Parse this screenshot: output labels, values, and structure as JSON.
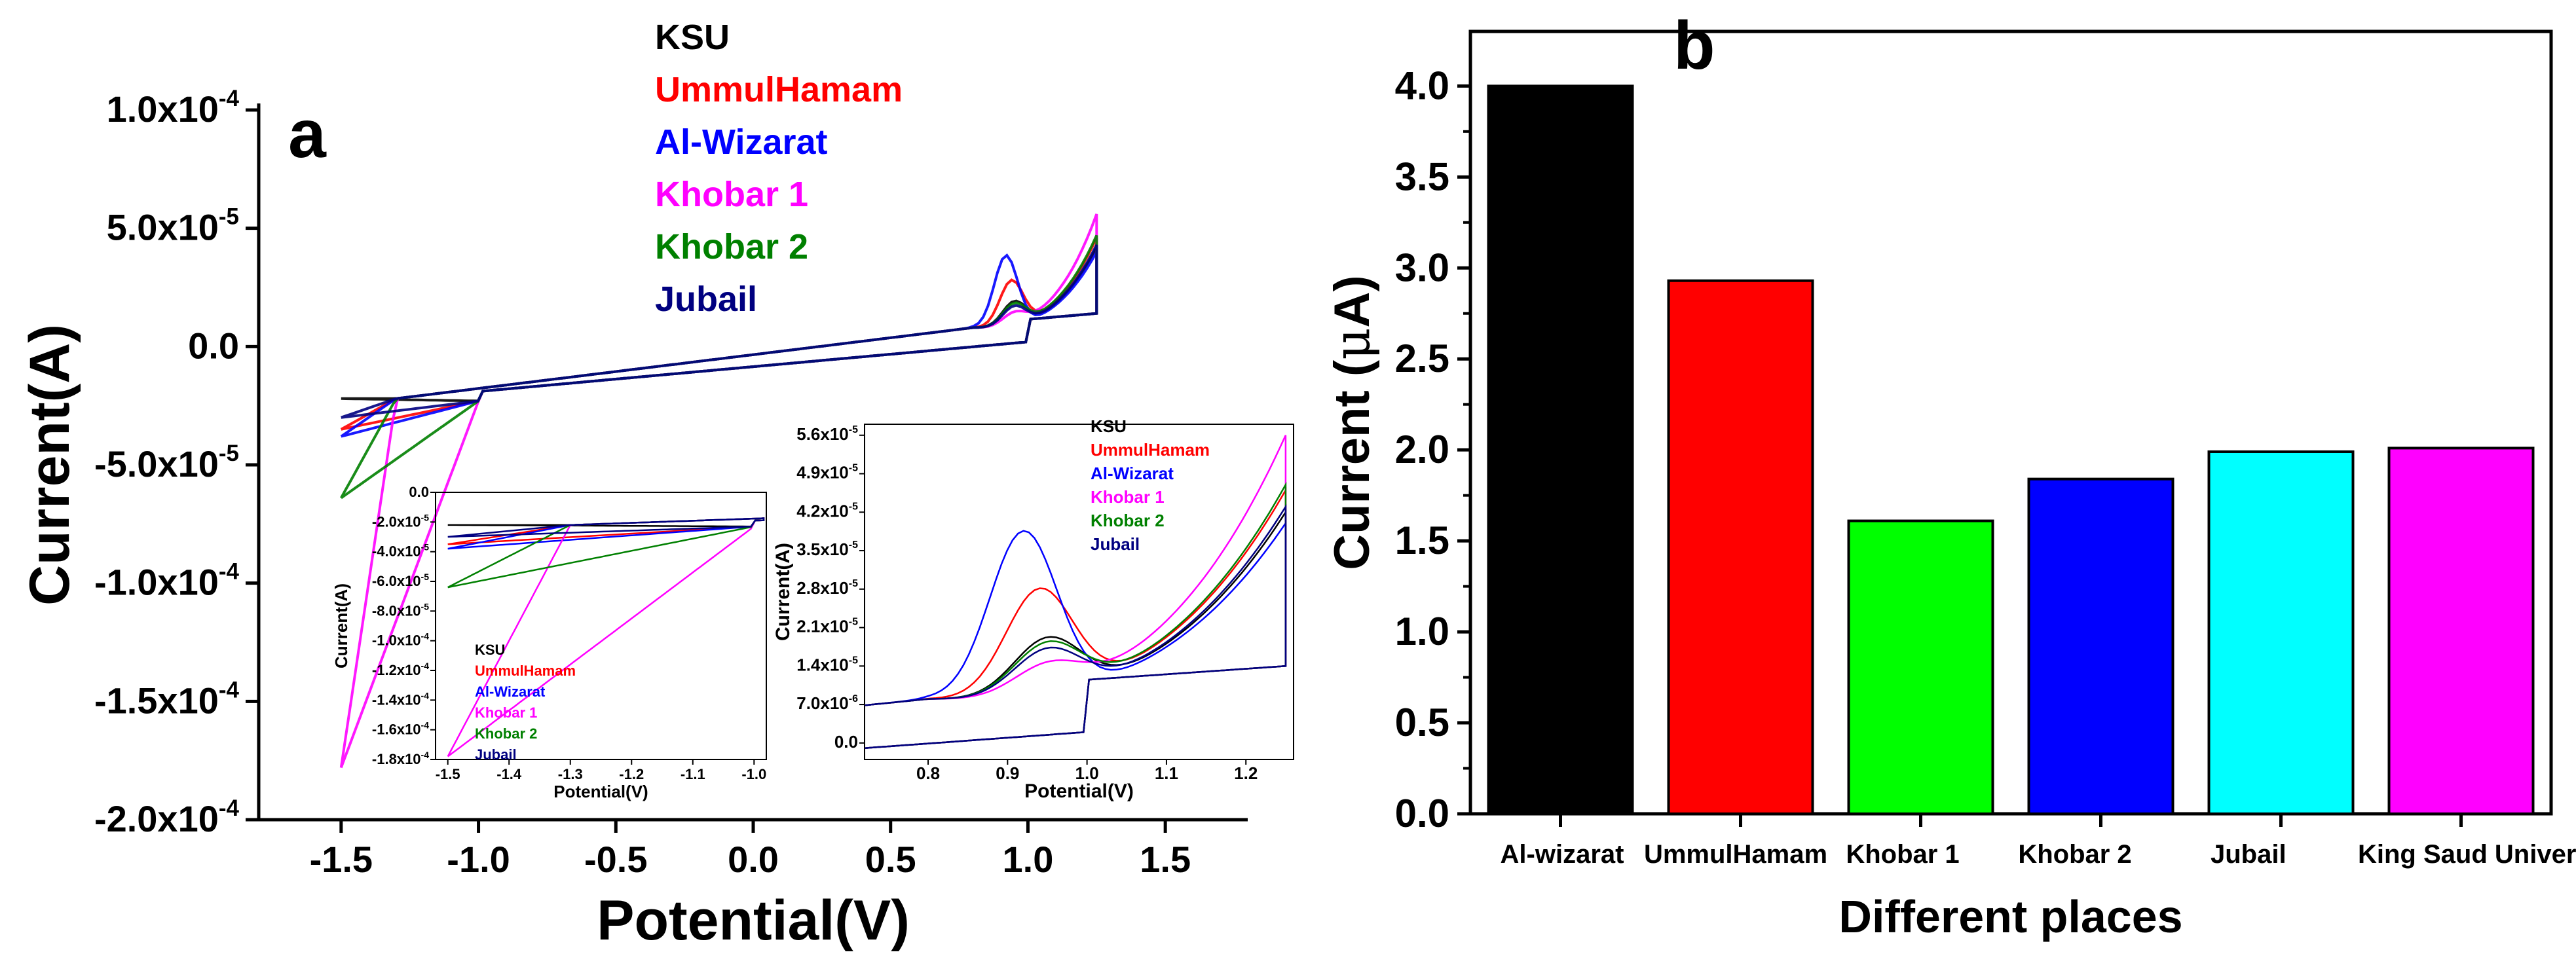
{
  "figure": {
    "panel_a_letter": "a",
    "panel_b_letter": "b"
  },
  "chart_data": [
    {
      "id": "panel-a-main",
      "type": "line",
      "title": "",
      "xlabel": "Potential(V)",
      "ylabel": "Current(A)",
      "xlim": [
        -1.8,
        1.8
      ],
      "ylim": [
        -0.0002,
        0.0001
      ],
      "x_ticks": [
        {
          "v": -1.5,
          "label": "-1.5"
        },
        {
          "v": -1.0,
          "label": "-1.0"
        },
        {
          "v": -0.5,
          "label": "-0.5"
        },
        {
          "v": 0.0,
          "label": "0.0"
        },
        {
          "v": 0.5,
          "label": "0.5"
        },
        {
          "v": 1.0,
          "label": "1.0"
        },
        {
          "v": 1.5,
          "label": "1.5"
        }
      ],
      "y_ticks": [
        {
          "v": 0.0001,
          "m": "1.0x10",
          "e": "-4"
        },
        {
          "v": 5e-05,
          "m": "5.0x10",
          "e": "-5"
        },
        {
          "v": 0,
          "m": "0.0",
          "e": ""
        },
        {
          "v": -5e-05,
          "m": "-5.0x10",
          "e": "-5"
        },
        {
          "v": -0.0001,
          "m": "-1.0x10",
          "e": "-4"
        },
        {
          "v": -0.00015,
          "m": "-1.5x10",
          "e": "-4"
        },
        {
          "v": -0.0002,
          "m": "-2.0x10",
          "e": "-4"
        }
      ],
      "legend": [
        "KSU",
        "UmmulHamam",
        "Al-Wizarat",
        "Khobar 1",
        "Khobar 2",
        "Jubail"
      ],
      "series": [
        {
          "name": "KSU",
          "color": "#000000",
          "peak_potential": 0.95,
          "peak_current": 2e-05,
          "start_current": -2.2e-05,
          "end_current": 4.2e-05
        },
        {
          "name": "UmmulHamam",
          "color": "#ff0000",
          "peak_potential": 0.94,
          "peak_current": 2.9e-05,
          "start_current": -3.5e-05,
          "end_current": 4.6e-05
        },
        {
          "name": "Al-Wizarat",
          "color": "#0000ff",
          "peak_potential": 0.92,
          "peak_current": 4e-05,
          "start_current": -3.8e-05,
          "end_current": 4e-05
        },
        {
          "name": "Khobar 1",
          "color": "#ff00ff",
          "peak_potential": 0.95,
          "peak_current": 1.5e-05,
          "start_current": -0.000178,
          "end_current": 5.6e-05
        },
        {
          "name": "Khobar 2",
          "color": "#008000",
          "peak_potential": 0.95,
          "peak_current": 1.9e-05,
          "start_current": -6.4e-05,
          "end_current": 4.7e-05
        },
        {
          "name": "Jubail",
          "color": "#000080",
          "peak_potential": 0.95,
          "peak_current": 1.8e-05,
          "start_current": -3e-05,
          "end_current": 4.3e-05
        }
      ]
    },
    {
      "id": "panel-a-inset-left",
      "type": "line",
      "xlabel": "Potential(V)",
      "ylabel": "Current(A)",
      "xlim": [
        -1.52,
        -0.98
      ],
      "ylim": [
        -0.00018,
        0
      ],
      "x_ticks": [
        {
          "v": -1.5,
          "label": "-1.5"
        },
        {
          "v": -1.4,
          "label": "-1.4"
        },
        {
          "v": -1.3,
          "label": "-1.3"
        },
        {
          "v": -1.2,
          "label": "-1.2"
        },
        {
          "v": -1.1,
          "label": "-1.1"
        },
        {
          "v": -1.0,
          "label": "-1.0"
        }
      ],
      "y_ticks": [
        {
          "v": 0,
          "m": "0.0",
          "e": ""
        },
        {
          "v": -2e-05,
          "m": "-2.0x10",
          "e": "-5"
        },
        {
          "v": -4e-05,
          "m": "-4.0x10",
          "e": "-5"
        },
        {
          "v": -6e-05,
          "m": "-6.0x10",
          "e": "-5"
        },
        {
          "v": -8e-05,
          "m": "-8.0x10",
          "e": "-5"
        },
        {
          "v": -0.0001,
          "m": "-1.0x10",
          "e": "-4"
        },
        {
          "v": -0.00012,
          "m": "-1.2x10",
          "e": "-4"
        },
        {
          "v": -0.00014,
          "m": "-1.4x10",
          "e": "-4"
        },
        {
          "v": -0.00016,
          "m": "-1.6x10",
          "e": "-4"
        },
        {
          "v": -0.00018,
          "m": "-1.8x10",
          "e": "-4"
        }
      ],
      "legend": [
        "KSU",
        "UmmulHamam",
        "Al-Wizarat",
        "Khobar 1",
        "Khobar 2",
        "Jubail"
      ]
    },
    {
      "id": "panel-a-inset-right",
      "type": "line",
      "xlabel": "Potential(V)",
      "ylabel": "Current(A)",
      "xlim": [
        0.72,
        1.26
      ],
      "ylim": [
        -3e-06,
        5.8e-05
      ],
      "x_ticks": [
        {
          "v": 0.8,
          "label": "0.8"
        },
        {
          "v": 0.9,
          "label": "0.9"
        },
        {
          "v": 1.0,
          "label": "1.0"
        },
        {
          "v": 1.1,
          "label": "1.1"
        },
        {
          "v": 1.2,
          "label": "1.2"
        }
      ],
      "y_ticks": [
        {
          "v": 0,
          "m": "0.0",
          "e": ""
        },
        {
          "v": 7e-06,
          "m": "7.0x10",
          "e": "-6"
        },
        {
          "v": 1.4e-05,
          "m": "1.4x10",
          "e": "-5"
        },
        {
          "v": 2.1e-05,
          "m": "2.1x10",
          "e": "-5"
        },
        {
          "v": 2.8e-05,
          "m": "2.8x10",
          "e": "-5"
        },
        {
          "v": 3.5e-05,
          "m": "3.5x10",
          "e": "-5"
        },
        {
          "v": 4.2e-05,
          "m": "4.2x10",
          "e": "-5"
        },
        {
          "v": 4.9e-05,
          "m": "4.9x10",
          "e": "-5"
        },
        {
          "v": 5.6e-05,
          "m": "5.6x10",
          "e": "-5"
        }
      ],
      "legend": [
        "KSU",
        "UmmulHamam",
        "Al-Wizarat",
        "Khobar 1",
        "Khobar 2",
        "Jubail"
      ]
    },
    {
      "id": "panel-b",
      "type": "bar",
      "title": "",
      "xlabel": "Different places",
      "ylabel_prefix": "Current (",
      "ylabel_mu": "μ",
      "ylabel_suffix": "A)",
      "ylim": [
        0,
        4.3
      ],
      "y_ticks": [
        {
          "v": 0,
          "label": "0.0"
        },
        {
          "v": 0.5,
          "label": "0.5"
        },
        {
          "v": 1.0,
          "label": "1.0"
        },
        {
          "v": 1.5,
          "label": "1.5"
        },
        {
          "v": 2.0,
          "label": "2.0"
        },
        {
          "v": 2.5,
          "label": "2.5"
        },
        {
          "v": 3.0,
          "label": "3.0"
        },
        {
          "v": 3.5,
          "label": "3.5"
        },
        {
          "v": 4.0,
          "label": "4.0"
        }
      ],
      "categories": [
        "Al-wizarat",
        "UmmulHamam",
        "Khobar 1",
        "Khobar 2",
        "Jubail",
        "King Saud University"
      ],
      "values": [
        4.0,
        2.93,
        1.61,
        1.84,
        1.99,
        2.01
      ],
      "colors": [
        "#000000",
        "#ff0000",
        "#00ff00",
        "#0000ff",
        "#00ffff",
        "#ff00ff"
      ]
    }
  ]
}
